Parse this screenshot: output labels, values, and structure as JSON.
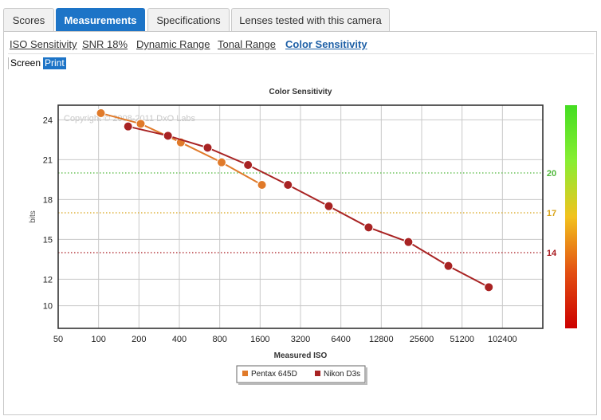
{
  "tabs": [
    {
      "label": "Scores",
      "active": false
    },
    {
      "label": "Measurements",
      "active": true
    },
    {
      "label": "Specifications",
      "active": false
    },
    {
      "label": "Lenses tested with this camera",
      "active": false
    }
  ],
  "subnav": [
    {
      "label": "ISO Sensitivity",
      "active": false
    },
    {
      "label": "SNR 18%",
      "active": false
    },
    {
      "label": "Dynamic Range",
      "active": false
    },
    {
      "label": "Tonal Range",
      "active": false
    },
    {
      "label": "Color Sensitivity",
      "active": true
    }
  ],
  "modes": {
    "screen": "Screen",
    "print": "Print"
  },
  "chart_data": {
    "type": "line",
    "title": "Color Sensitivity",
    "xlabel": "Measured ISO",
    "ylabel": "bits",
    "x_scale": "log2",
    "xlim": [
      50,
      204800
    ],
    "ylim": [
      8.3,
      25.1
    ],
    "x_ticks": [
      50,
      100,
      200,
      400,
      800,
      1600,
      3200,
      6400,
      12800,
      25600,
      51200,
      102400
    ],
    "y_ticks": [
      24,
      21,
      18,
      15,
      12,
      10
    ],
    "watermark": "Copyright © 2008-2011 DxO Labs",
    "reference_lines": [
      {
        "value": 20,
        "label": "20",
        "color": "#4fb83a"
      },
      {
        "value": 17,
        "label": "17",
        "color": "#d8a316"
      },
      {
        "value": 14,
        "label": "14",
        "color": "#a8181d"
      }
    ],
    "legend_position": "bottom-center",
    "series": [
      {
        "name": "Pentax 645D",
        "color": "#e07a2a",
        "x": [
          104,
          206,
          410,
          826,
          1650
        ],
        "y": [
          24.5,
          23.7,
          22.3,
          20.8,
          19.1
        ]
      },
      {
        "name": "Nikon D3s",
        "color": "#a82323",
        "x": [
          166,
          329,
          650,
          1300,
          2580,
          5200,
          10300,
          20400,
          40500,
          81000
        ],
        "y": [
          23.5,
          22.8,
          21.9,
          20.6,
          19.1,
          17.5,
          15.9,
          14.8,
          13.0,
          11.4
        ]
      }
    ],
    "colorbar": {
      "stops": [
        "#44dd22",
        "#88ee33",
        "#f2c21e",
        "#e34f12",
        "#cc0000"
      ]
    }
  }
}
